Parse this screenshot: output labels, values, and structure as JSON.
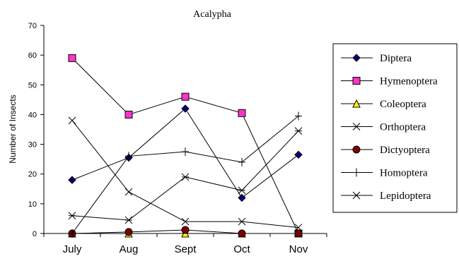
{
  "chart_data": {
    "type": "line",
    "title": "Acalypha",
    "xlabel": "",
    "ylabel": "Number of Insects",
    "categories": [
      "July",
      "Aug",
      "Sept",
      "Oct",
      "Nov"
    ],
    "ylim": [
      0,
      70
    ],
    "yticks": [
      0,
      10,
      20,
      30,
      40,
      50,
      60,
      70
    ],
    "grid": false,
    "legend_position": "right",
    "series": [
      {
        "name": "Diptera",
        "marker": "diamond",
        "marker_fill": "#000080",
        "values": [
          18,
          25.5,
          42,
          12,
          26.5
        ]
      },
      {
        "name": "Hymenoptera",
        "marker": "square",
        "marker_fill": "#ff33cc",
        "values": [
          59,
          40,
          46,
          40.5,
          0
        ]
      },
      {
        "name": "Coleoptera",
        "marker": "triangle",
        "marker_fill": "#ffff00",
        "values": [
          0,
          0,
          0,
          0,
          0
        ]
      },
      {
        "name": "Orthoptera",
        "marker": "x",
        "marker_fill": "none",
        "values": [
          38,
          14,
          4,
          4,
          2
        ]
      },
      {
        "name": "Dictyoptera",
        "marker": "circle",
        "marker_fill": "#800000",
        "values": [
          0,
          0.5,
          1.2,
          0,
          0
        ]
      },
      {
        "name": "Homoptera",
        "marker": "plus",
        "marker_fill": "none",
        "values": [
          0,
          26,
          27.5,
          24,
          39.5
        ]
      },
      {
        "name": "Lepidoptera",
        "marker": "asterisk",
        "marker_fill": "none",
        "values": [
          6,
          4.5,
          19,
          14.5,
          34.5
        ]
      }
    ]
  }
}
